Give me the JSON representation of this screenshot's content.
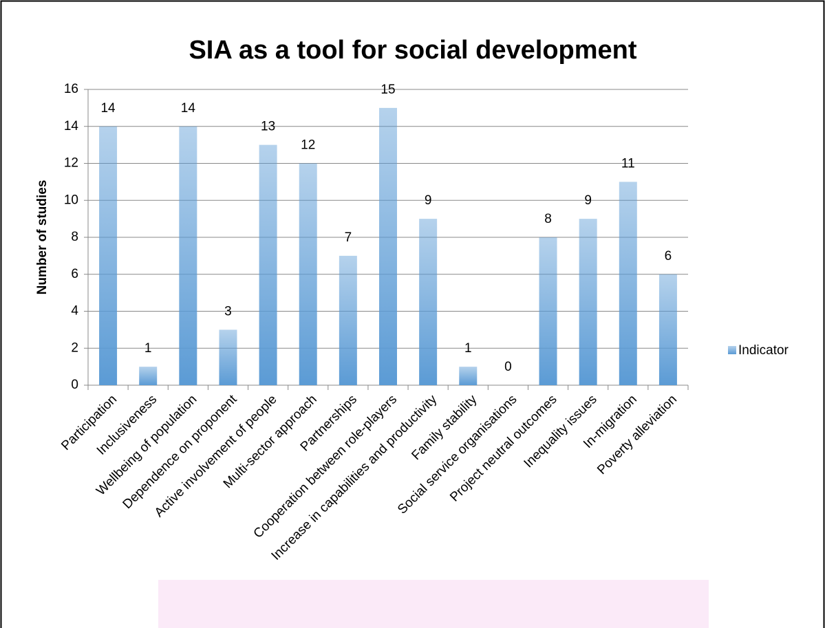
{
  "chart_data": {
    "type": "bar",
    "title": "SIA as a tool for social development",
    "y_label": "Number of studies",
    "categories": [
      "Participation",
      "Inclusiveness",
      "Wellbeing of population",
      "Dependence on proponent",
      "Active involvement of people",
      "Multi-sector approach",
      "Partnerships",
      "Cooperation between role-players",
      "Increase in capabilities and productivity",
      "Family stability",
      "Social service organisations",
      "Project neutral outcomes",
      "Inequality issues",
      "In-migration",
      "Poverty alleviation"
    ],
    "series": [
      {
        "name": "Indicator",
        "color": "#5b9bd5",
        "values": [
          14,
          1,
          14,
          3,
          13,
          12,
          7,
          15,
          9,
          1,
          0,
          8,
          9,
          11,
          6
        ]
      }
    ],
    "ylim": [
      0,
      16
    ],
    "yticks": [
      0,
      2,
      4,
      6,
      8,
      10,
      12,
      14,
      16
    ],
    "grid": true,
    "legend": "right"
  }
}
